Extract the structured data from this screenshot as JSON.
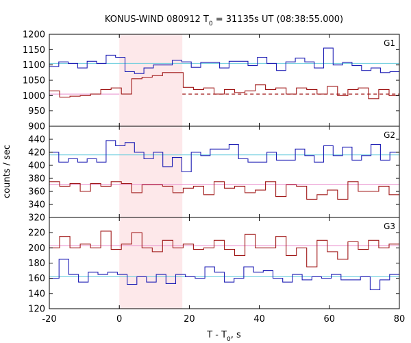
{
  "chart_data": {
    "type": "line",
    "title": "KONUS-WIND 080912 T",
    "title_sub": "0",
    "title_rest": " = 31135s UT (08:38:55.000)",
    "xlabel": "T - T",
    "xlabel_sub": "0",
    "xlabel_rest": ", s",
    "ylabel": "counts / sec",
    "xlim": [
      -20,
      80
    ],
    "xticks": [
      "-20",
      "0",
      "20",
      "40",
      "60",
      "80"
    ],
    "highlight": {
      "x0": 0,
      "x1": 18,
      "color": "#fde8ea"
    },
    "colors": {
      "blue": "#1c1cb4",
      "red": "#a01818",
      "cyan": "#66ccdd",
      "pink": "#e88ccc"
    },
    "bin_edges": [
      -20,
      -17,
      -14,
      -11,
      -8,
      -5,
      -2,
      1,
      4,
      7,
      10,
      13,
      16,
      19,
      22,
      25,
      28,
      31,
      34,
      37,
      40,
      43,
      46,
      49,
      52,
      55,
      58,
      61,
      64,
      67,
      70,
      73,
      76,
      79,
      80
    ],
    "panels": [
      {
        "label": "G1",
        "ylim": [
          900,
          1200
        ],
        "yticks": [
          "900",
          "950",
          "1000",
          "1050",
          "1100",
          "1150",
          "1200"
        ],
        "series": [
          {
            "name": "G1 blue",
            "color": "blue",
            "values": [
              1095,
              1110,
              1105,
              1090,
              1112,
              1105,
              1132,
              1125,
              1078,
              1072,
              1090,
              1100,
              1100,
              1115,
              1110,
              1092,
              1108,
              1108,
              1090,
              1112,
              1112,
              1098,
              1125,
              1105,
              1082,
              1110,
              1122,
              1110,
              1090,
              1155,
              1100,
              1108,
              1098,
              1082,
              1090,
              1075,
              1078
            ]
          },
          {
            "name": "G1 red",
            "color": "red",
            "values": [
              1015,
              995,
              998,
              1000,
              1005,
              1020,
              1025,
              1005,
              1055,
              1060,
              1065,
              1075,
              1075,
              1027,
              1020,
              1025,
              1005,
              1020,
              1010,
              1015,
              1035,
              1020,
              1025,
              1005,
              1025,
              1020,
              1005,
              1030,
              1000,
              1020,
              1025,
              990,
              1020,
              1000
            ]
          }
        ],
        "baselines": [
          {
            "color": "cyan",
            "value": 1105,
            "x0": -20,
            "x1": 80,
            "dashed": false
          },
          {
            "color": "pink",
            "value": 1005,
            "x0": -20,
            "x1": 0,
            "dashed": false
          },
          {
            "color": "red",
            "value": 1005,
            "x0": 18,
            "x1": 80,
            "dashed": true
          }
        ]
      },
      {
        "label": "G2",
        "ylim": [
          320,
          460
        ],
        "yticks": [
          "320",
          "340",
          "360",
          "380",
          "400",
          "420",
          "440"
        ],
        "series": [
          {
            "name": "G2 blue",
            "color": "blue",
            "values": [
              420,
              405,
              410,
              405,
              410,
              405,
              438,
              430,
              435,
              420,
              410,
              420,
              398,
              412,
              390,
              420,
              415,
              425,
              425,
              432,
              410,
              405,
              405,
              420,
              408,
              408,
              425,
              415,
              405,
              430,
              415,
              428,
              408,
              415,
              432,
              408,
              420
            ]
          },
          {
            "name": "G2 red",
            "color": "red",
            "values": [
              375,
              368,
              372,
              360,
              372,
              368,
              375,
              372,
              358,
              370,
              370,
              368,
              358,
              365,
              368,
              355,
              375,
              365,
              368,
              358,
              362,
              375,
              352,
              370,
              368,
              348,
              355,
              362,
              348,
              375,
              360,
              360,
              368,
              355
            ]
          }
        ],
        "baselines": [
          {
            "color": "cyan",
            "value": 416,
            "x0": -20,
            "x1": 80,
            "dashed": false
          },
          {
            "color": "pink",
            "value": 371,
            "x0": -20,
            "x1": 80,
            "dashed": false
          }
        ]
      },
      {
        "label": "G3",
        "ylim": [
          120,
          240
        ],
        "yticks": [
          "120",
          "140",
          "160",
          "180",
          "200",
          "220"
        ],
        "series": [
          {
            "name": "G3 blue",
            "color": "blue",
            "values": [
              160,
              185,
              165,
              155,
              168,
              165,
              168,
              165,
              152,
              162,
              155,
              165,
              153,
              165,
              162,
              160,
              175,
              168,
              155,
              160,
              175,
              168,
              170,
              160,
              155,
              165,
              158,
              162,
              160,
              165,
              158,
              158,
              162,
              145,
              158,
              165
            ]
          },
          {
            "name": "G3 red",
            "color": "red",
            "values": [
              200,
              215,
              200,
              205,
              200,
              222,
              198,
              205,
              220,
              200,
              195,
              210,
              200,
              205,
              198,
              200,
              210,
              198,
              190,
              218,
              200,
              200,
              215,
              190,
              200,
              175,
              210,
              195,
              185,
              208,
              198,
              210,
              200,
              205
            ]
          }
        ],
        "baselines": [
          {
            "color": "pink",
            "value": 203,
            "x0": -20,
            "x1": 80,
            "dashed": false
          },
          {
            "color": "cyan",
            "value": 162,
            "x0": -20,
            "x1": 80,
            "dashed": false
          }
        ]
      }
    ]
  }
}
